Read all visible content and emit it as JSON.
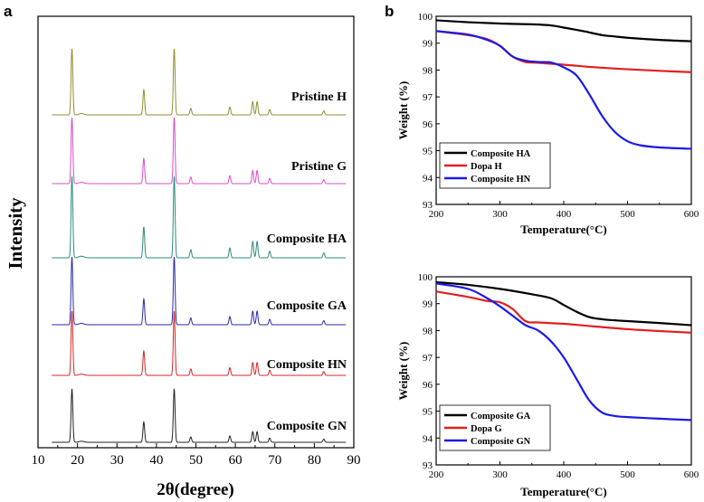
{
  "chart_data": [
    {
      "type": "line",
      "panel_label": "a",
      "title": "",
      "xlabel": "2θ(degree)",
      "ylabel": "Intensity",
      "xlim": [
        10,
        90
      ],
      "xticks": [
        "10",
        "20",
        "30",
        "40",
        "50",
        "60",
        "70",
        "80",
        "90"
      ],
      "peaks_2theta": [
        18.6,
        36.8,
        44.5,
        48.7,
        58.6,
        64.4,
        65.5,
        68.7,
        82.4
      ],
      "peak_rel_intensity": [
        1.0,
        0.38,
        1.0,
        0.1,
        0.12,
        0.2,
        0.2,
        0.08,
        0.06
      ],
      "series": [
        {
          "name": "Pristine H",
          "color": "#8f8f30"
        },
        {
          "name": "Pristine G",
          "color": "#d94fc4"
        },
        {
          "name": "Composite HA",
          "color": "#2e8a7a"
        },
        {
          "name": "Composite GA",
          "color": "#2a2aa8"
        },
        {
          "name": "Composite HN",
          "color": "#d02828"
        },
        {
          "name": "Composite GN",
          "color": "#222222"
        }
      ]
    },
    {
      "type": "line",
      "panel_label": "b",
      "xlabel": "Temperature(°C)",
      "ylabel": "Weight (%)",
      "xlim": [
        200,
        600
      ],
      "ylim": [
        93,
        100
      ],
      "xticks": [
        "200",
        "300",
        "400",
        "500",
        "600"
      ],
      "yticks": [
        "93",
        "94",
        "95",
        "96",
        "97",
        "98",
        "99",
        "100"
      ],
      "legend": "bottom-left",
      "series": [
        {
          "name": "Composite HA",
          "color": "#000000",
          "x": [
            200,
            250,
            300,
            350,
            380,
            400,
            430,
            460,
            480,
            500,
            550,
            600
          ],
          "y": [
            99.85,
            99.78,
            99.73,
            99.7,
            99.66,
            99.58,
            99.45,
            99.3,
            99.25,
            99.2,
            99.12,
            99.07
          ]
        },
        {
          "name": "Dopa H",
          "color": "#e02020",
          "x": [
            200,
            250,
            280,
            300,
            320,
            340,
            360,
            400,
            450,
            500,
            550,
            600
          ],
          "y": [
            99.45,
            99.3,
            99.15,
            98.9,
            98.5,
            98.3,
            98.27,
            98.2,
            98.1,
            98.03,
            97.97,
            97.92
          ]
        },
        {
          "name": "Composite HN",
          "color": "#1a1ae6",
          "x": [
            200,
            250,
            280,
            300,
            320,
            340,
            360,
            380,
            400,
            420,
            440,
            460,
            480,
            500,
            520,
            550,
            600
          ],
          "y": [
            99.45,
            99.32,
            99.12,
            98.9,
            98.5,
            98.35,
            98.3,
            98.28,
            98.1,
            97.8,
            97.1,
            96.3,
            95.7,
            95.35,
            95.2,
            95.12,
            95.07
          ]
        }
      ]
    },
    {
      "type": "line",
      "panel_label": "",
      "xlabel": "Temperature(°C)",
      "ylabel": "Weight (%)",
      "xlim": [
        200,
        600
      ],
      "ylim": [
        93,
        100
      ],
      "xticks": [
        "200",
        "300",
        "400",
        "500",
        "600"
      ],
      "yticks": [
        "93",
        "94",
        "95",
        "96",
        "97",
        "98",
        "99",
        "100"
      ],
      "legend": "bottom-left",
      "series": [
        {
          "name": "Composite GA",
          "color": "#000000",
          "x": [
            200,
            250,
            300,
            350,
            380,
            400,
            420,
            440,
            460,
            480,
            500,
            550,
            600
          ],
          "y": [
            99.8,
            99.7,
            99.55,
            99.35,
            99.2,
            98.95,
            98.7,
            98.5,
            98.42,
            98.38,
            98.35,
            98.28,
            98.2
          ]
        },
        {
          "name": "Dopa G",
          "color": "#e02020",
          "x": [
            200,
            250,
            280,
            300,
            320,
            340,
            360,
            400,
            450,
            500,
            550,
            600
          ],
          "y": [
            99.45,
            99.25,
            99.1,
            99.05,
            98.8,
            98.35,
            98.3,
            98.25,
            98.15,
            98.05,
            97.98,
            97.92
          ]
        },
        {
          "name": "Composite GN",
          "color": "#1a1ae6",
          "x": [
            200,
            250,
            280,
            300,
            320,
            340,
            360,
            380,
            400,
            420,
            440,
            460,
            480,
            500,
            550,
            600
          ],
          "y": [
            99.75,
            99.55,
            99.2,
            98.9,
            98.55,
            98.2,
            98.0,
            97.6,
            97.0,
            96.2,
            95.4,
            94.95,
            94.82,
            94.78,
            94.72,
            94.67
          ]
        }
      ]
    }
  ]
}
